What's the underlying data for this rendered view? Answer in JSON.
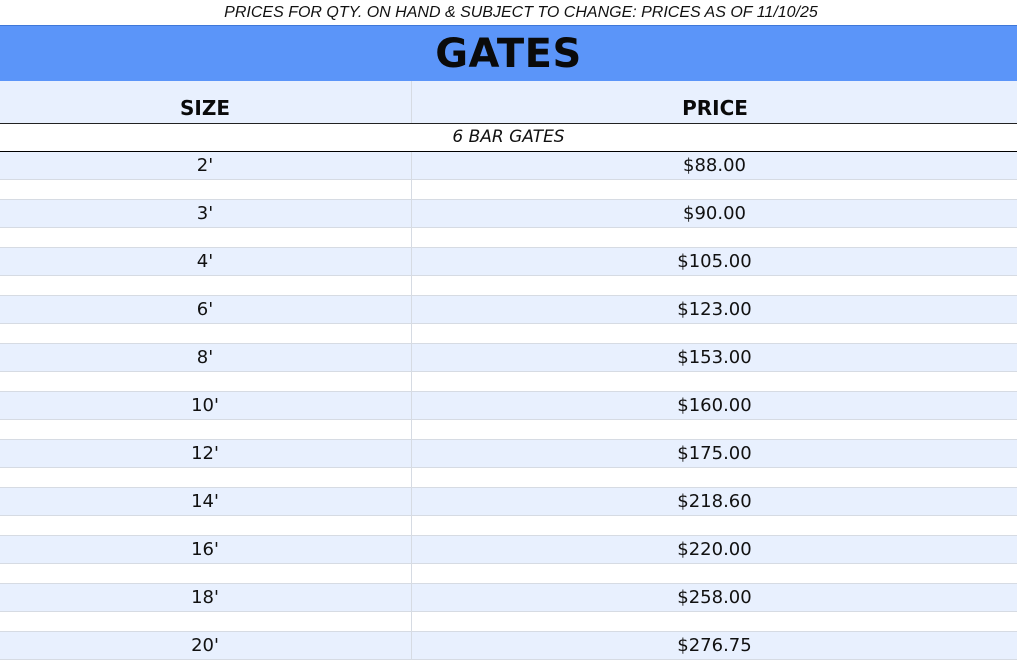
{
  "notice": "PRICES FOR QTY. ON HAND & SUBJECT TO CHANGE: PRICES AS OF 11/10/25",
  "title": "GATES",
  "headers": {
    "size": "SIZE",
    "price": "PRICE"
  },
  "section": "6 BAR GATES",
  "colors": {
    "title_bar": "#5b95f9",
    "row_band": "#e8f0fe",
    "grid_line": "#d6dbe3"
  },
  "rows": [
    {
      "size": "2'",
      "price": "$88.00"
    },
    {
      "size": "3'",
      "price": "$90.00"
    },
    {
      "size": "4'",
      "price": "$105.00"
    },
    {
      "size": "6'",
      "price": "$123.00"
    },
    {
      "size": "8'",
      "price": "$153.00"
    },
    {
      "size": "10'",
      "price": "$160.00"
    },
    {
      "size": "12'",
      "price": "$175.00"
    },
    {
      "size": "14'",
      "price": "$218.60"
    },
    {
      "size": "16'",
      "price": "$220.00"
    },
    {
      "size": "18'",
      "price": "$258.00"
    },
    {
      "size": "20'",
      "price": "$276.75"
    }
  ]
}
